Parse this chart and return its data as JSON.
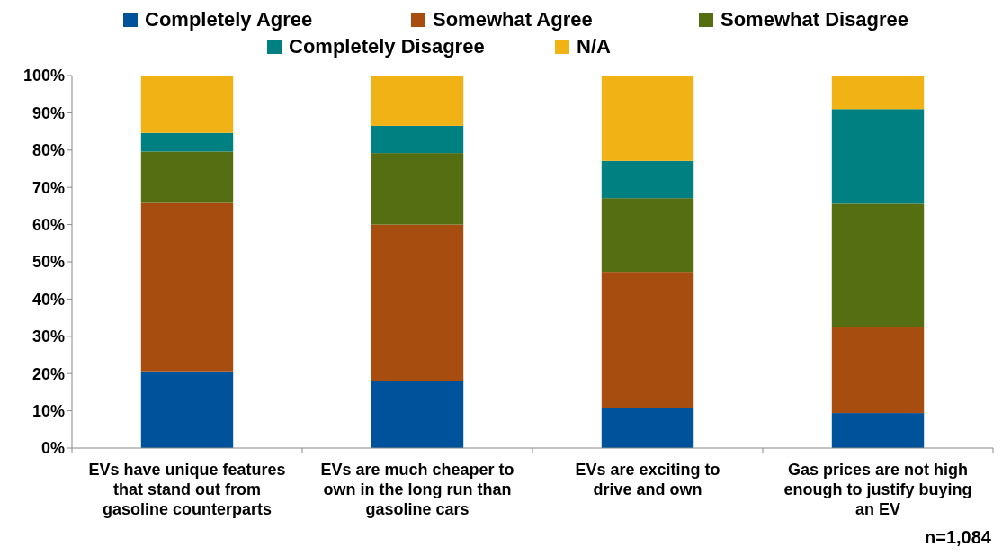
{
  "chart_data": {
    "type": "bar",
    "stacked": true,
    "categories": [
      "EVs have unique features that stand out from gasoline counterparts",
      "EVs are much cheaper to own in the long run than gasoline cars",
      "EVs are exciting to drive and own",
      "Gas prices are not high enough to justify buying an EV"
    ],
    "series": [
      {
        "name": "Completely Agree",
        "color": "#00539b",
        "values": [
          20.6,
          18.1,
          10.8,
          9.4
        ]
      },
      {
        "name": "Somewhat Agree",
        "color": "#a84d10",
        "values": [
          45.2,
          41.9,
          36.5,
          23.1
        ]
      },
      {
        "name": "Somewhat Disagree",
        "color": "#556e12",
        "values": [
          13.8,
          19.2,
          19.8,
          33.1
        ]
      },
      {
        "name": "Completely Disagree",
        "color": "#008080",
        "values": [
          5.0,
          7.3,
          10.0,
          25.4
        ]
      },
      {
        "name": "N/A",
        "color": "#f0b214",
        "values": [
          15.4,
          13.5,
          22.9,
          9.0
        ]
      }
    ],
    "ylim": [
      0,
      100
    ],
    "yticks": [
      {
        "value": 0,
        "label": "0%"
      },
      {
        "value": 10,
        "label": "10%"
      },
      {
        "value": 20,
        "label": "20%"
      },
      {
        "value": 30,
        "label": "30%"
      },
      {
        "value": 40,
        "label": "40%"
      },
      {
        "value": 50,
        "label": "50%"
      },
      {
        "value": 60,
        "label": "60%"
      },
      {
        "value": 70,
        "label": "70%"
      },
      {
        "value": 80,
        "label": "80%"
      },
      {
        "value": 90,
        "label": "90%"
      },
      {
        "value": 100,
        "label": "100%"
      }
    ],
    "grid": false,
    "legend": "top",
    "annotations": [
      "n=1,084"
    ]
  }
}
